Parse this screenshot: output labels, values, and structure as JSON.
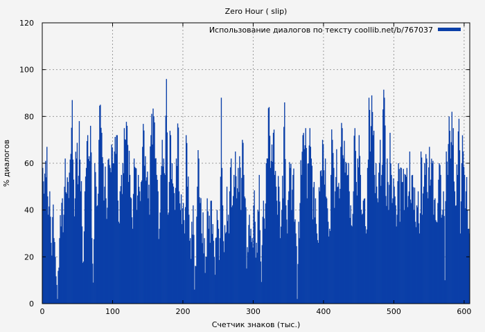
{
  "chart_data": {
    "type": "bar",
    "title": "Zero Hour ( slip)",
    "xlabel": "Счетчик знаков (тыс.)",
    "ylabel": "% диалогов",
    "xlim": [
      0,
      608
    ],
    "ylim": [
      0,
      120
    ],
    "xticks": [
      0,
      100,
      200,
      300,
      400,
      500,
      600
    ],
    "yticks": [
      0,
      20,
      40,
      60,
      80,
      100,
      120
    ],
    "grid": true,
    "legend_position": "top-right",
    "series": [
      {
        "name": "Использование диалогов по тексту coollib.net/b/767037",
        "color": "#0a3fa8",
        "x_step": 1,
        "sampled": true,
        "keypoints": [
          [
            0,
            58
          ],
          [
            2,
            47
          ],
          [
            4,
            61
          ],
          [
            6,
            67
          ],
          [
            8,
            38
          ],
          [
            10,
            48
          ],
          [
            12,
            26
          ],
          [
            14,
            37
          ],
          [
            16,
            28
          ],
          [
            18,
            20
          ],
          [
            20,
            8
          ],
          [
            21,
            2
          ],
          [
            22,
            14
          ],
          [
            24,
            28
          ],
          [
            26,
            33
          ],
          [
            28,
            45
          ],
          [
            30,
            38
          ],
          [
            32,
            62
          ],
          [
            34,
            47
          ],
          [
            36,
            52
          ],
          [
            38,
            56
          ],
          [
            40,
            64
          ],
          [
            42,
            87
          ],
          [
            44,
            53
          ],
          [
            46,
            45
          ],
          [
            48,
            62
          ],
          [
            50,
            51
          ],
          [
            52,
            78
          ],
          [
            54,
            48
          ],
          [
            56,
            33
          ],
          [
            58,
            18
          ],
          [
            60,
            48
          ],
          [
            62,
            58
          ],
          [
            64,
            72
          ],
          [
            66,
            63
          ],
          [
            68,
            76
          ],
          [
            70,
            28
          ],
          [
            72,
            9
          ],
          [
            74,
            60
          ],
          [
            76,
            50
          ],
          [
            78,
            42
          ],
          [
            80,
            70
          ],
          [
            82,
            85
          ],
          [
            84,
            73
          ],
          [
            86,
            60
          ],
          [
            88,
            50
          ],
          [
            90,
            45
          ],
          [
            92,
            41
          ],
          [
            94,
            62
          ],
          [
            96,
            58
          ],
          [
            98,
            68
          ],
          [
            100,
            60
          ],
          [
            102,
            65
          ],
          [
            104,
            64
          ],
          [
            106,
            72
          ],
          [
            108,
            35
          ],
          [
            110,
            48
          ],
          [
            112,
            55
          ],
          [
            114,
            60
          ],
          [
            116,
            75
          ],
          [
            118,
            70
          ],
          [
            120,
            76
          ],
          [
            122,
            52
          ],
          [
            124,
            55
          ],
          [
            126,
            45
          ],
          [
            128,
            32
          ],
          [
            130,
            62
          ],
          [
            132,
            58
          ],
          [
            134,
            40
          ],
          [
            136,
            55
          ],
          [
            138,
            48
          ],
          [
            140,
            52
          ],
          [
            142,
            67
          ],
          [
            144,
            74
          ],
          [
            146,
            63
          ],
          [
            148,
            54
          ],
          [
            150,
            45
          ],
          [
            152,
            38
          ],
          [
            154,
            72
          ],
          [
            156,
            68
          ],
          [
            158,
            80
          ],
          [
            160,
            62
          ],
          [
            162,
            55
          ],
          [
            164,
            48
          ],
          [
            166,
            32
          ],
          [
            168,
            55
          ],
          [
            170,
            70
          ],
          [
            172,
            62
          ],
          [
            174,
            55
          ],
          [
            176,
            96
          ],
          [
            178,
            38
          ],
          [
            180,
            52
          ],
          [
            182,
            72
          ],
          [
            184,
            60
          ],
          [
            186,
            50
          ],
          [
            188,
            40
          ],
          [
            190,
            62
          ],
          [
            192,
            77
          ],
          [
            194,
            48
          ],
          [
            196,
            40
          ],
          [
            198,
            34
          ],
          [
            200,
            43
          ],
          [
            202,
            30
          ],
          [
            204,
            72
          ],
          [
            206,
            50
          ],
          [
            208,
            38
          ],
          [
            210,
            28
          ],
          [
            212,
            35
          ],
          [
            214,
            42
          ],
          [
            216,
            6
          ],
          [
            218,
            16
          ],
          [
            220,
            50
          ],
          [
            222,
            62
          ],
          [
            224,
            43
          ],
          [
            226,
            30
          ],
          [
            228,
            39
          ],
          [
            230,
            28
          ],
          [
            232,
            20
          ],
          [
            234,
            45
          ],
          [
            236,
            32
          ],
          [
            238,
            26
          ],
          [
            240,
            44
          ],
          [
            242,
            34
          ],
          [
            244,
            20
          ],
          [
            246,
            28
          ],
          [
            248,
            40
          ],
          [
            250,
            32
          ],
          [
            252,
            28
          ],
          [
            254,
            88
          ],
          [
            256,
            42
          ],
          [
            258,
            22
          ],
          [
            260,
            30
          ],
          [
            262,
            50
          ],
          [
            264,
            38
          ],
          [
            266,
            48
          ],
          [
            268,
            62
          ],
          [
            270,
            42
          ],
          [
            272,
            55
          ],
          [
            274,
            65
          ],
          [
            276,
            45
          ],
          [
            278,
            58
          ],
          [
            280,
            63
          ],
          [
            282,
            40
          ],
          [
            284,
            70
          ],
          [
            286,
            55
          ],
          [
            288,
            45
          ],
          [
            290,
            15
          ],
          [
            292,
            22
          ],
          [
            294,
            38
          ],
          [
            296,
            32
          ],
          [
            298,
            28
          ],
          [
            300,
            42
          ],
          [
            302,
            35
          ],
          [
            304,
            26
          ],
          [
            306,
            40
          ],
          [
            308,
            55
          ],
          [
            310,
            18
          ],
          [
            312,
            25
          ],
          [
            314,
            44
          ],
          [
            316,
            32
          ],
          [
            318,
            60
          ],
          [
            320,
            62
          ],
          [
            322,
            84
          ],
          [
            324,
            58
          ],
          [
            326,
            68
          ],
          [
            328,
            73
          ],
          [
            330,
            55
          ],
          [
            332,
            50
          ],
          [
            334,
            38
          ],
          [
            336,
            50
          ],
          [
            338,
            28
          ],
          [
            340,
            40
          ],
          [
            342,
            45
          ],
          [
            344,
            86
          ],
          [
            346,
            42
          ],
          [
            348,
            30
          ],
          [
            350,
            48
          ],
          [
            352,
            58
          ],
          [
            354,
            40
          ],
          [
            356,
            55
          ],
          [
            358,
            35
          ],
          [
            360,
            30
          ],
          [
            362,
            2
          ],
          [
            364,
            35
          ],
          [
            366,
            43
          ],
          [
            368,
            55
          ],
          [
            370,
            72
          ],
          [
            372,
            66
          ],
          [
            374,
            75
          ],
          [
            376,
            45
          ],
          [
            378,
            60
          ],
          [
            380,
            75
          ],
          [
            382,
            62
          ],
          [
            384,
            36
          ],
          [
            386,
            52
          ],
          [
            388,
            45
          ],
          [
            390,
            30
          ],
          [
            392,
            26
          ],
          [
            394,
            48
          ],
          [
            396,
            57
          ],
          [
            398,
            70
          ],
          [
            400,
            57
          ],
          [
            402,
            62
          ],
          [
            404,
            45
          ],
          [
            406,
            35
          ],
          [
            408,
            32
          ],
          [
            410,
            55
          ],
          [
            412,
            70
          ],
          [
            414,
            58
          ],
          [
            416,
            48
          ],
          [
            418,
            66
          ],
          [
            420,
            50
          ],
          [
            422,
            45
          ],
          [
            424,
            67
          ],
          [
            426,
            75
          ],
          [
            428,
            62
          ],
          [
            430,
            56
          ],
          [
            432,
            60
          ],
          [
            434,
            55
          ],
          [
            436,
            48
          ],
          [
            438,
            42
          ],
          [
            440,
            33
          ],
          [
            442,
            48
          ],
          [
            444,
            75
          ],
          [
            446,
            52
          ],
          [
            448,
            62
          ],
          [
            450,
            72
          ],
          [
            452,
            55
          ],
          [
            454,
            38
          ],
          [
            456,
            44
          ],
          [
            458,
            45
          ],
          [
            460,
            30
          ],
          [
            462,
            58
          ],
          [
            464,
            88
          ],
          [
            466,
            65
          ],
          [
            468,
            89
          ],
          [
            470,
            72
          ],
          [
            472,
            55
          ],
          [
            474,
            60
          ],
          [
            476,
            45
          ],
          [
            478,
            56
          ],
          [
            480,
            70
          ],
          [
            482,
            55
          ],
          [
            484,
            83
          ],
          [
            486,
            88
          ],
          [
            488,
            46
          ],
          [
            490,
            62
          ],
          [
            492,
            40
          ],
          [
            494,
            73
          ],
          [
            496,
            55
          ],
          [
            498,
            45
          ],
          [
            500,
            50
          ],
          [
            502,
            42
          ],
          [
            504,
            38
          ],
          [
            506,
            60
          ],
          [
            508,
            35
          ],
          [
            510,
            58
          ],
          [
            512,
            52
          ],
          [
            514,
            40
          ],
          [
            516,
            55
          ],
          [
            518,
            58
          ],
          [
            520,
            46
          ],
          [
            522,
            65
          ],
          [
            524,
            43
          ],
          [
            526,
            55
          ],
          [
            528,
            40
          ],
          [
            530,
            35
          ],
          [
            532,
            42
          ],
          [
            534,
            48
          ],
          [
            536,
            30
          ],
          [
            538,
            65
          ],
          [
            540,
            38
          ],
          [
            542,
            50
          ],
          [
            544,
            55
          ],
          [
            546,
            62
          ],
          [
            548,
            45
          ],
          [
            550,
            67
          ],
          [
            552,
            53
          ],
          [
            554,
            60
          ],
          [
            556,
            38
          ],
          [
            558,
            45
          ],
          [
            560,
            35
          ],
          [
            562,
            43
          ],
          [
            564,
            60
          ],
          [
            566,
            55
          ],
          [
            568,
            38
          ],
          [
            570,
            48
          ],
          [
            572,
            10
          ],
          [
            574,
            65
          ],
          [
            576,
            55
          ],
          [
            578,
            80
          ],
          [
            580,
            62
          ],
          [
            582,
            82
          ],
          [
            584,
            75
          ],
          [
            586,
            48
          ],
          [
            588,
            42
          ],
          [
            590,
            55
          ],
          [
            592,
            79
          ],
          [
            594,
            30
          ],
          [
            596,
            60
          ],
          [
            598,
            65
          ],
          [
            600,
            55
          ],
          [
            602,
            48
          ],
          [
            604,
            40
          ],
          [
            606,
            32
          ],
          [
            607,
            30
          ]
        ]
      }
    ]
  }
}
